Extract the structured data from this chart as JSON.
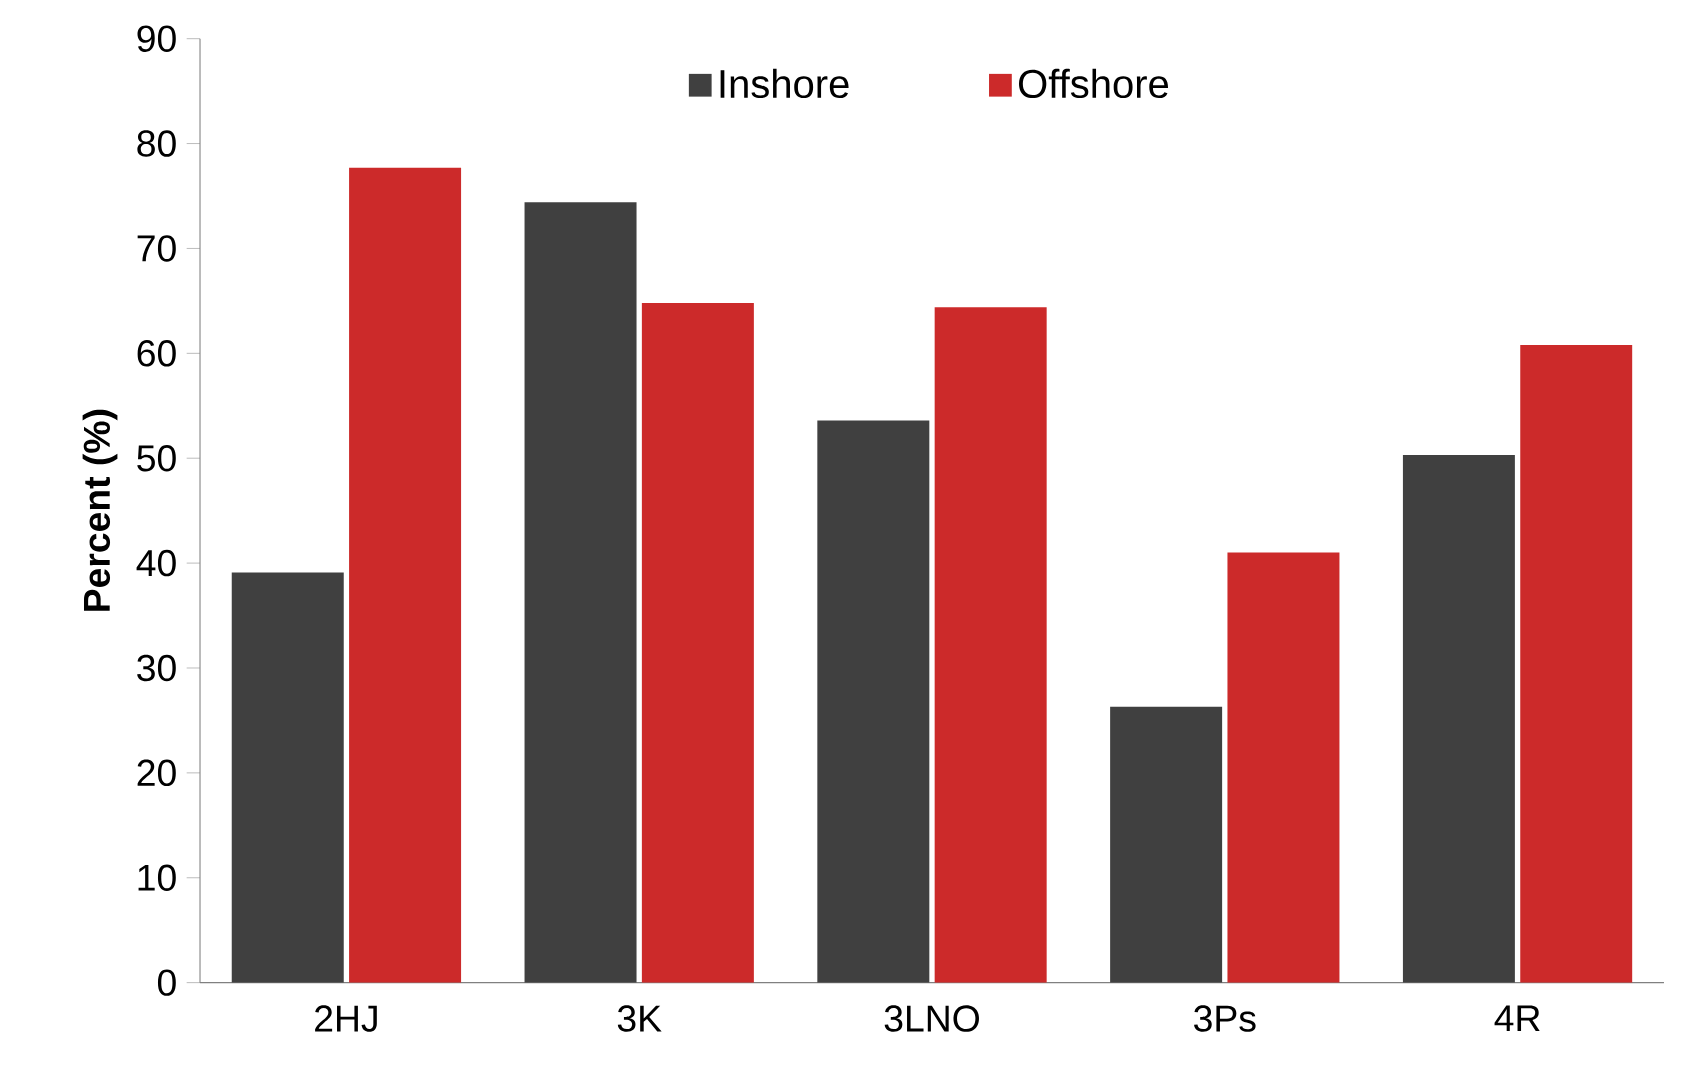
{
  "chart_data": {
    "type": "bar",
    "ylabel": "Percent (%)",
    "categories": [
      "2HJ",
      "3K",
      "3LNO",
      "3Ps",
      "4R"
    ],
    "series": [
      {
        "name": "Inshore",
        "color": "#404040",
        "values": [
          39.1,
          74.4,
          53.6,
          26.3,
          50.3
        ]
      },
      {
        "name": "Offshore",
        "color": "#cc2a2a",
        "values": [
          77.7,
          64.8,
          64.4,
          41.0,
          60.8
        ]
      }
    ],
    "ylim": [
      0,
      90
    ],
    "yticks": [
      0,
      10,
      20,
      30,
      40,
      50,
      60,
      70,
      80,
      90
    ],
    "legend": "top",
    "grid": false
  }
}
